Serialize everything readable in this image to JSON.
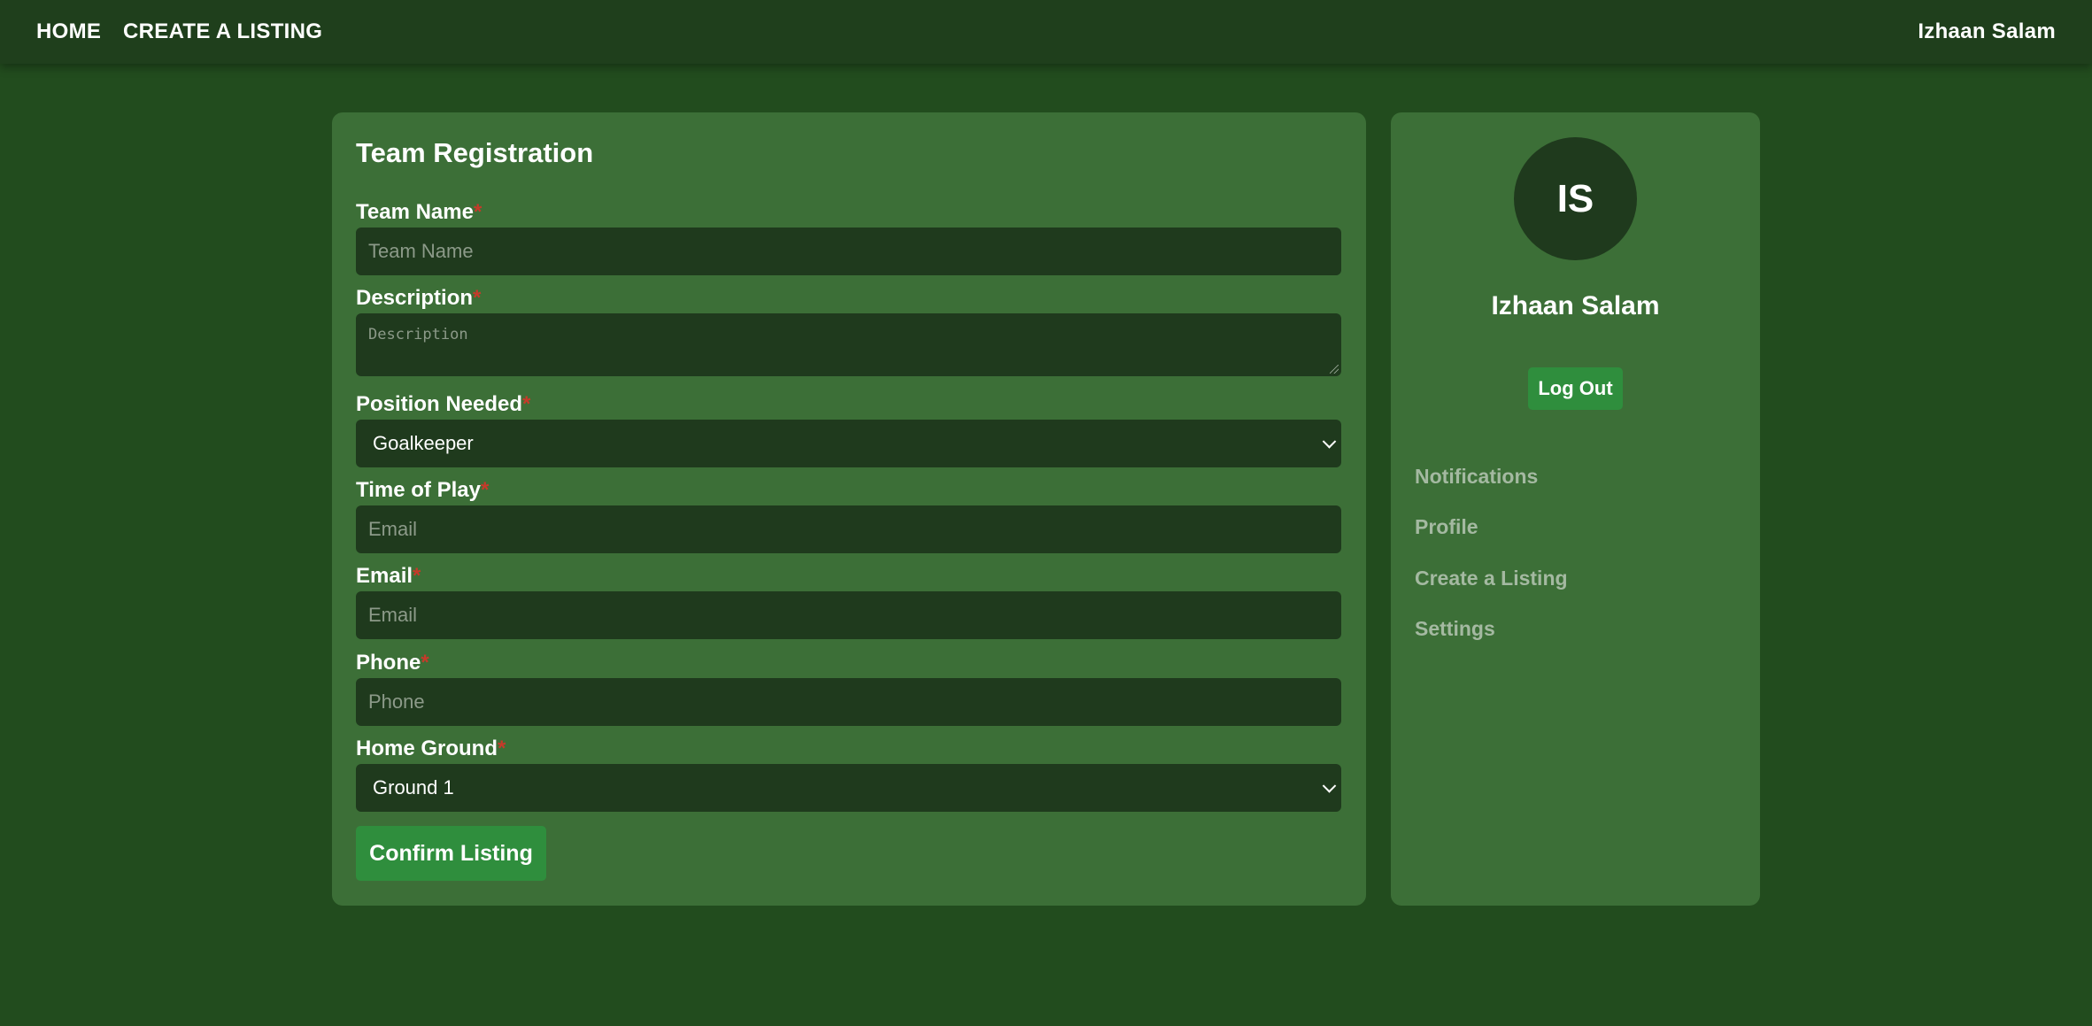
{
  "nav": {
    "home": "HOME",
    "create_listing": "CREATE A LISTING",
    "user": "Izhaan Salam"
  },
  "form": {
    "title": "Team Registration",
    "required_mark": "*",
    "fields": [
      {
        "label": "Team Name",
        "placeholder": "Team Name",
        "type": "text"
      },
      {
        "label": "Description",
        "placeholder": "Description",
        "type": "textarea"
      },
      {
        "label": "Position Needed",
        "value": "Goalkeeper",
        "type": "select"
      },
      {
        "label": "Time of Play",
        "placeholder": "Email",
        "type": "text"
      },
      {
        "label": "Email",
        "placeholder": "Email",
        "type": "text"
      },
      {
        "label": "Phone",
        "placeholder": "Phone",
        "type": "text"
      },
      {
        "label": "Home Ground",
        "value": "Ground 1",
        "type": "select"
      }
    ],
    "confirm_label": "Confirm Listing"
  },
  "sidebar": {
    "initials": "IS",
    "name": "Izhaan Salam",
    "logout_label": "Log Out",
    "links": [
      "Notifications",
      "Profile",
      "Create a Listing",
      "Settings"
    ]
  }
}
